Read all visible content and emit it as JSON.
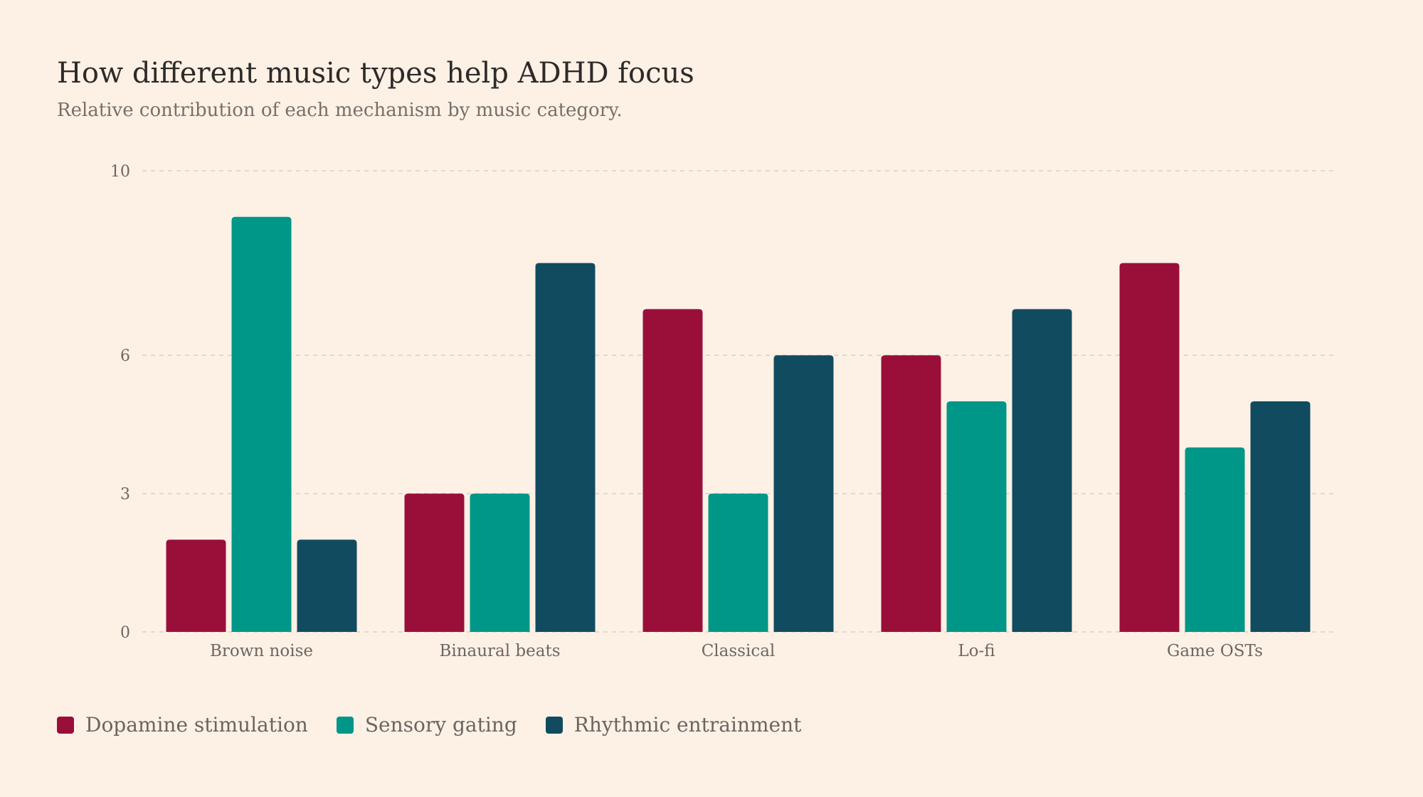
{
  "header": {
    "title": "How different music types help ADHD focus",
    "subtitle": "Relative contribution of each mechanism by music category."
  },
  "chart_data": {
    "type": "bar",
    "title": "How different music types help ADHD focus",
    "subtitle": "Relative contribution of each mechanism by music category.",
    "categories": [
      "Brown noise",
      "Binaural beats",
      "Classical",
      "Lo-fi",
      "Game OSTs"
    ],
    "series": [
      {
        "name": "Dopamine stimulation",
        "color": "#9a0f3a",
        "values": [
          2,
          3,
          7,
          6,
          8
        ]
      },
      {
        "name": "Sensory gating",
        "color": "#009688",
        "values": [
          9,
          3,
          3,
          5,
          4
        ]
      },
      {
        "name": "Rhythmic entrainment",
        "color": "#114b5f",
        "values": [
          2,
          8,
          6,
          7,
          5
        ]
      }
    ],
    "y_ticks": [
      0,
      3,
      6,
      10
    ],
    "ylim": [
      0,
      10
    ],
    "grid": true,
    "legend_position": "bottom-left",
    "xlabel": "",
    "ylabel": ""
  }
}
